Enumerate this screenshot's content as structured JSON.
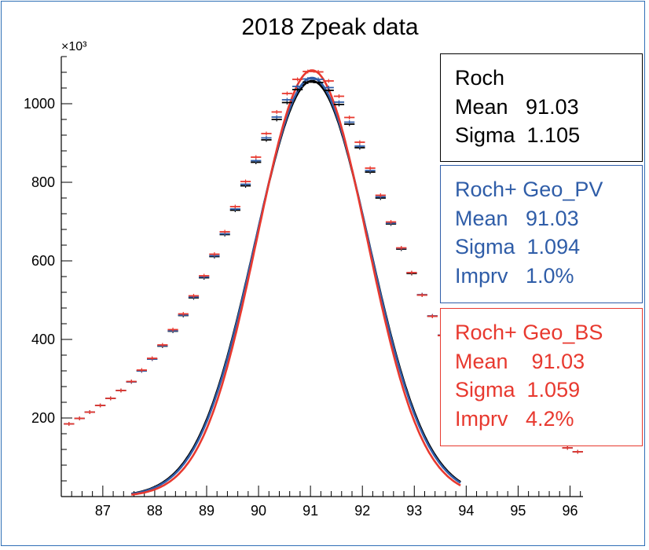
{
  "chart_data": {
    "type": "scatter",
    "title": "2018 Zpeak data",
    "xlabel": "",
    "ylabel": "",
    "y_multiplier_label": "×10³",
    "xlim": [
      86.2,
      96.25
    ],
    "ylim": [
      0,
      1120
    ],
    "x_ticks": [
      87,
      88,
      89,
      90,
      91,
      92,
      93,
      94,
      95,
      96
    ],
    "y_ticks": [
      200,
      400,
      600,
      800,
      1000
    ],
    "grid": false,
    "series": [
      {
        "name": "Roch",
        "color": "#000000",
        "style": "points+fit",
        "x": [
          86.35,
          86.55,
          86.75,
          86.95,
          87.15,
          87.35,
          87.55,
          87.75,
          87.95,
          88.15,
          88.35,
          88.55,
          88.75,
          88.95,
          89.15,
          89.35,
          89.55,
          89.75,
          89.95,
          90.15,
          90.35,
          90.55,
          90.75,
          90.95,
          91.15,
          91.35,
          91.55,
          91.75,
          91.95,
          92.15,
          92.35,
          92.55,
          92.75,
          92.95,
          93.15,
          93.35,
          93.55,
          93.75,
          93.95,
          94.15,
          94.35,
          94.55,
          94.75,
          94.95,
          95.15,
          95.35,
          95.55,
          95.75,
          95.95,
          96.15
        ],
        "y": [
          185,
          199,
          215,
          232,
          250,
          270,
          292,
          320,
          350,
          383,
          421,
          461,
          506,
          557,
          611,
          667,
          729,
          791,
          851,
          908,
          960,
          1003,
          1036,
          1055,
          1054,
          1034,
          998,
          948,
          888,
          826,
          760,
          694,
          630,
          568,
          513,
          459,
          410,
          367,
          329,
          294,
          264,
          239,
          216,
          197,
          178,
          162,
          148,
          135,
          124,
          114
        ]
      },
      {
        "name": "Roch+ Geo_PV",
        "color": "#2f5da8",
        "style": "points+fit",
        "x": [
          86.35,
          86.55,
          86.75,
          86.95,
          87.15,
          87.35,
          87.55,
          87.75,
          87.95,
          88.15,
          88.35,
          88.55,
          88.75,
          88.95,
          89.15,
          89.35,
          89.55,
          89.75,
          89.95,
          90.15,
          90.35,
          90.55,
          90.75,
          90.95,
          91.15,
          91.35,
          91.55,
          91.75,
          91.95,
          92.15,
          92.35,
          92.55,
          92.75,
          92.95,
          93.15,
          93.35,
          93.55,
          93.75,
          93.95,
          94.15,
          94.35,
          94.55,
          94.75,
          94.95,
          95.15,
          95.35,
          95.55,
          95.75,
          95.95,
          96.15
        ],
        "y": [
          185,
          199,
          215,
          232,
          250,
          270,
          292,
          320,
          350,
          384,
          422,
          462,
          508,
          559,
          613,
          669,
          732,
          795,
          855,
          913,
          966,
          1010,
          1044,
          1063,
          1062,
          1041,
          1004,
          953,
          892,
          830,
          763,
          696,
          632,
          570,
          514,
          460,
          411,
          367,
          329,
          294,
          264,
          239,
          216,
          197,
          178,
          162,
          148,
          135,
          124,
          114
        ]
      },
      {
        "name": "Roch+ Geo_BS",
        "color": "#e8392f",
        "style": "points+fit",
        "x": [
          86.35,
          86.55,
          86.75,
          86.95,
          87.15,
          87.35,
          87.55,
          87.75,
          87.95,
          88.15,
          88.35,
          88.55,
          88.75,
          88.95,
          89.15,
          89.35,
          89.55,
          89.75,
          89.95,
          90.15,
          90.35,
          90.55,
          90.75,
          90.95,
          91.15,
          91.35,
          91.55,
          91.75,
          91.95,
          92.15,
          92.35,
          92.55,
          92.75,
          92.95,
          93.15,
          93.35,
          93.55,
          93.75,
          93.95,
          94.15,
          94.35,
          94.55,
          94.75,
          94.95,
          95.15,
          95.35,
          95.55,
          95.75,
          95.95,
          96.15
        ],
        "y": [
          185,
          199,
          215,
          232,
          250,
          270,
          293,
          322,
          352,
          386,
          425,
          465,
          511,
          562,
          617,
          674,
          738,
          802,
          864,
          924,
          979,
          1026,
          1062,
          1082,
          1081,
          1058,
          1019,
          965,
          902,
          836,
          767,
          699,
          633,
          570,
          513,
          459,
          410,
          366,
          328,
          294,
          264,
          239,
          216,
          197,
          178,
          162,
          148,
          135,
          124,
          114
        ]
      }
    ],
    "fits": [
      {
        "series": "Roch",
        "mean": 91.03,
        "sigma": 1.105,
        "peak": 1058,
        "x_start": 87.55,
        "x_end": 93.9
      },
      {
        "series": "Roch+ Geo_PV",
        "mean": 91.03,
        "sigma": 1.094,
        "peak": 1066,
        "x_start": 87.55,
        "x_end": 93.9
      },
      {
        "series": "Roch+ Geo_BS",
        "mean": 91.03,
        "sigma": 1.059,
        "peak": 1085,
        "x_start": 87.55,
        "x_end": 93.9
      }
    ]
  },
  "stat_boxes": {
    "roch": {
      "name": "Roch",
      "mean": "Mean   91.03",
      "sigma": "Sigma  1.105",
      "color": "#000000"
    },
    "geo_pv": {
      "name": "Roch+ Geo_PV",
      "mean": "Mean   91.03",
      "sigma": "Sigma  1.094",
      "imprv": "Imprv   1.0%",
      "color": "#2f5da8"
    },
    "geo_bs": {
      "name": "Roch+ Geo_BS",
      "mean": "Mean    91.03",
      "sigma": "Sigma  1.059",
      "imprv": "Imprv   4.2%",
      "color": "#e8392f"
    }
  }
}
